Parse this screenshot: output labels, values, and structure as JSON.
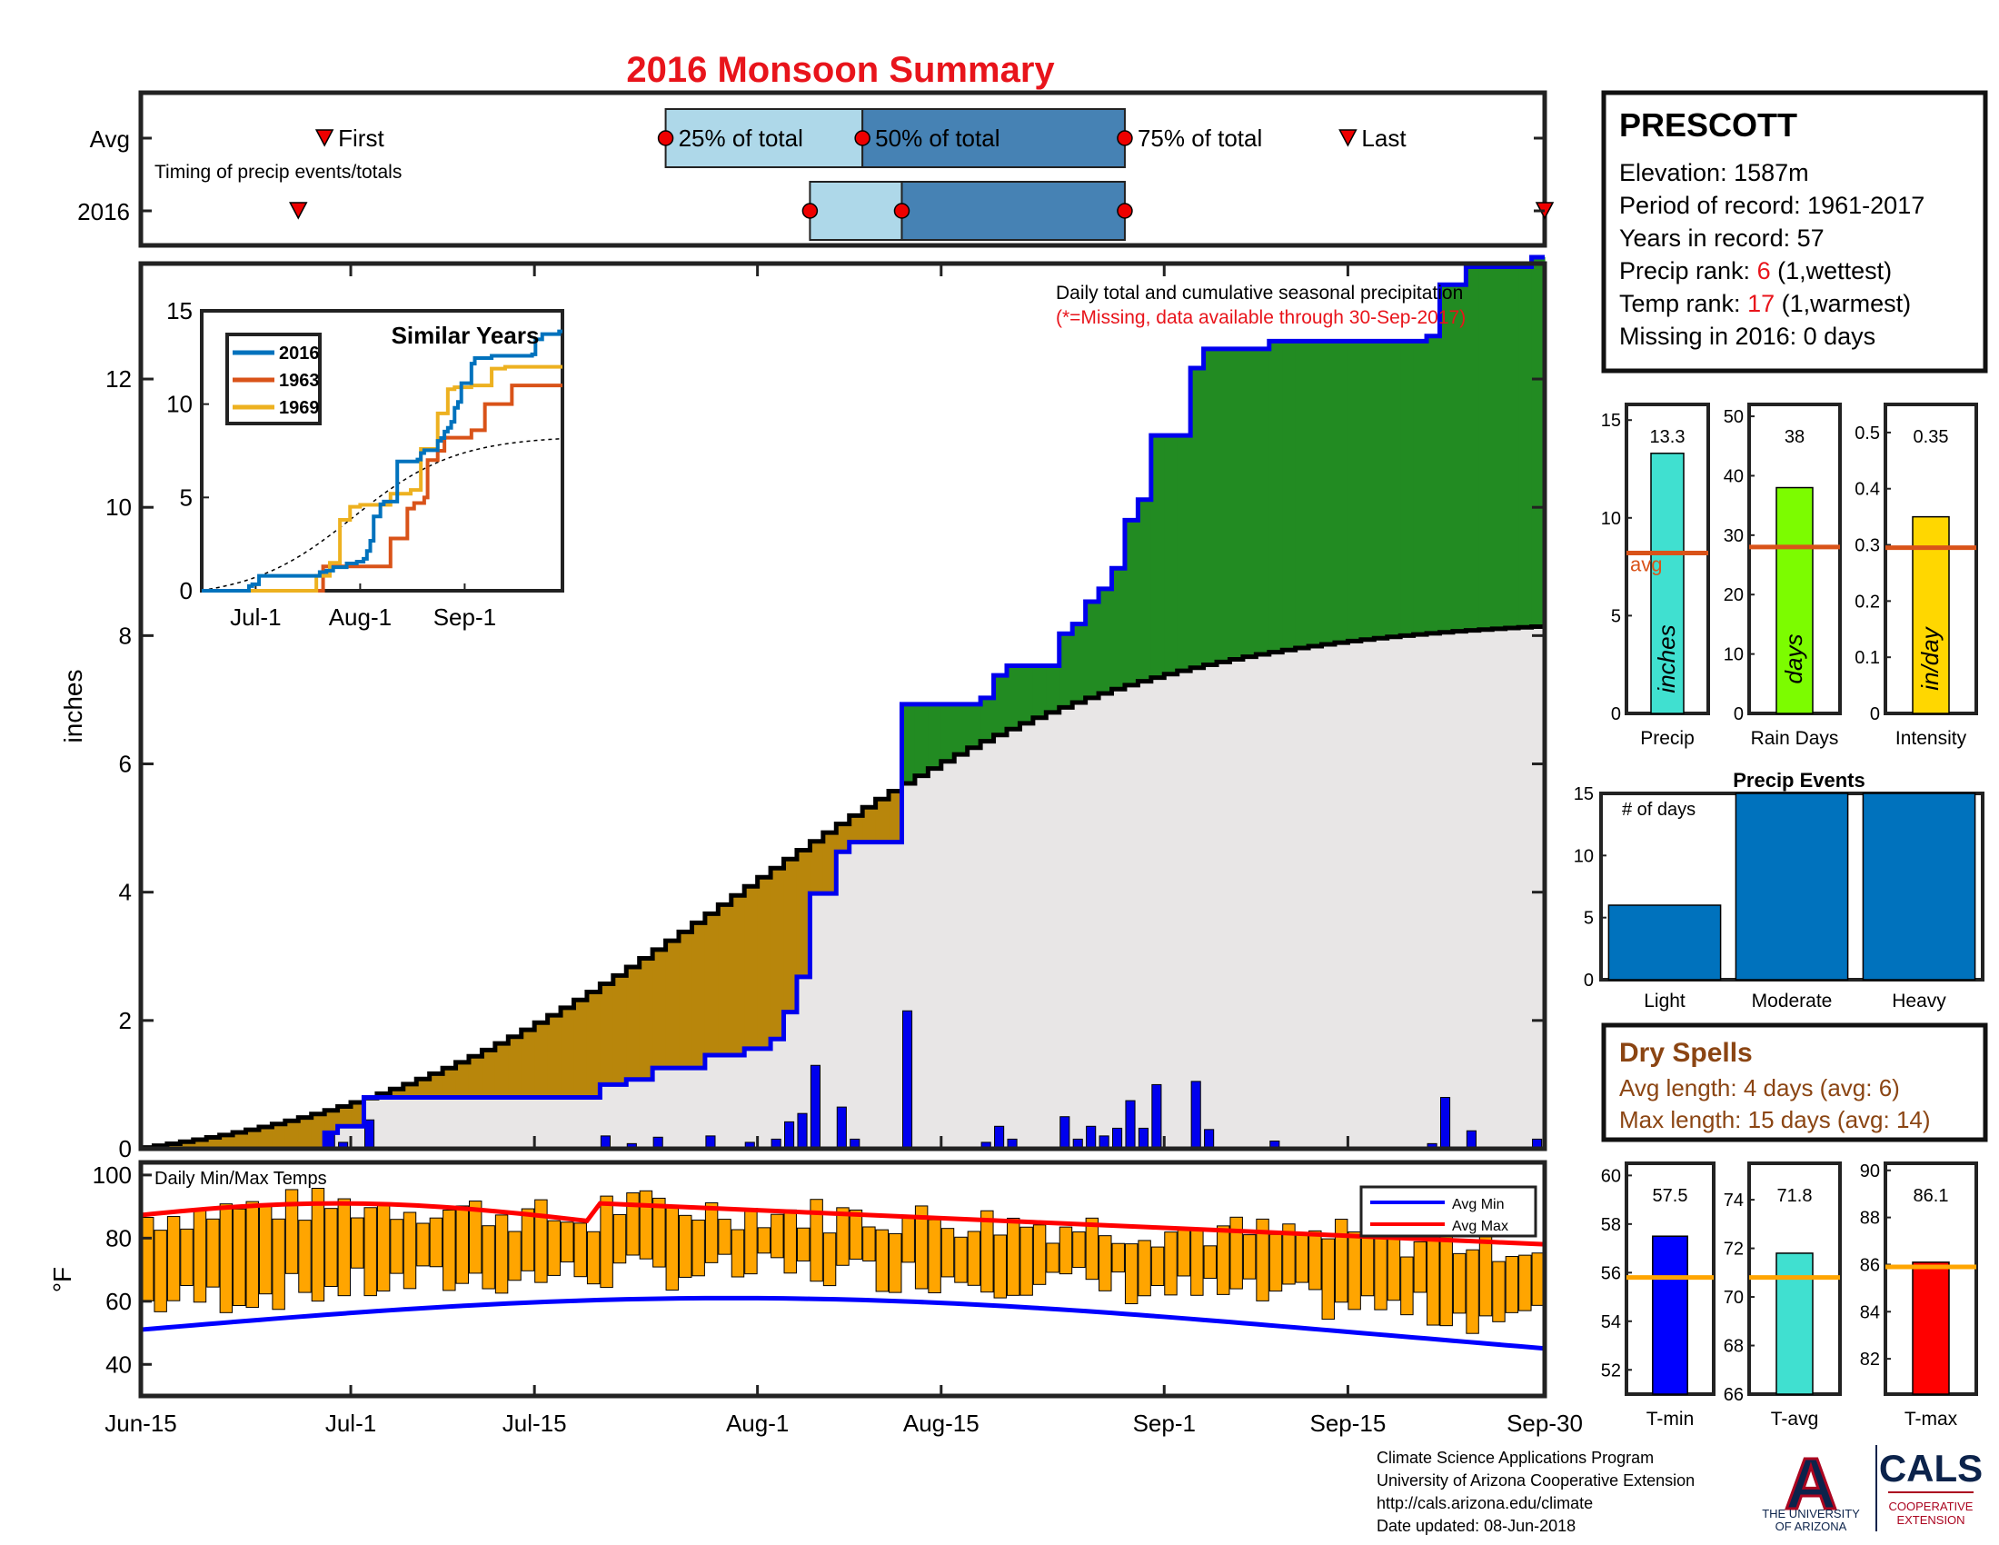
{
  "title": "2016 Monsoon Summary",
  "colors": {
    "title": "#e8141b",
    "green": "#228b22",
    "brown": "#b8860b",
    "gray_fill": "#e8e6e6",
    "blue_line": "#0000ee",
    "lightblue": "#aed8e9",
    "steelblue": "#4682b4",
    "orange": "#ffa500",
    "avg_line": "#d95319",
    "cyan": "#40e0d0",
    "lime": "#7cfc00",
    "gold": "#ffd700",
    "event_blue": "#0072bd",
    "tmin": "#0000ff",
    "tmax": "#ff0000",
    "temp_avg_line": "#ffa500",
    "dry_text": "#8b4513",
    "ua_red": "#ab0520",
    "ua_navy": "#0c234b"
  },
  "timing": {
    "row_avg": "Avg",
    "row_2016": "2016",
    "subtitle": "Timing of precip events/totals",
    "first_label": "First",
    "last_label": "Last",
    "p25_label": "25% of total",
    "p50_label": "50% of total",
    "p75_label": "75% of total",
    "avg": {
      "first": 14,
      "p25": 40,
      "p50": 55,
      "p75": 75,
      "last": 92
    },
    "y2016": {
      "first": 12,
      "p25": 51,
      "p50": 58,
      "p75": 75,
      "last": 107
    }
  },
  "station": {
    "name": "PRESCOTT",
    "elevation": "Elevation: 1587m",
    "period": "Period of record: 1961-2017",
    "years": "Years in record: 57",
    "precip_rank_label": "Precip rank: ",
    "precip_rank_value": "6",
    "precip_rank_note": " (1,wettest)",
    "temp_rank_label": "Temp rank: ",
    "temp_rank_value": "17",
    "temp_rank_note": " (1,warmest)",
    "missing": "Missing in 2016: 0 days"
  },
  "main_chart": {
    "ylabel": "inches",
    "note1": "Daily total and cumulative seasonal precipitation",
    "note2": "(*=Missing, data available through 30-Sep-2017)",
    "x_ticks": [
      {
        "day": 0,
        "label": "Jun-15"
      },
      {
        "day": 16,
        "label": "Jul-1"
      },
      {
        "day": 30,
        "label": "Jul-15"
      },
      {
        "day": 47,
        "label": "Aug-1"
      },
      {
        "day": 61,
        "label": "Aug-15"
      },
      {
        "day": 78,
        "label": "Sep-1"
      },
      {
        "day": 92,
        "label": "Sep-15"
      },
      {
        "day": 107,
        "label": "Sep-30"
      }
    ],
    "y_ticks": [
      0,
      2,
      4,
      6,
      8,
      10,
      12
    ],
    "ylim": [
      0,
      13.8
    ],
    "avg_start": 0.02,
    "avg_end": 8.15,
    "daily_precip": [
      {
        "day": 14,
        "value": 0.25
      },
      {
        "day": 15,
        "value": 0.1
      },
      {
        "day": 17,
        "value": 0.45
      },
      {
        "day": 35,
        "value": 0.2
      },
      {
        "day": 37,
        "value": 0.08
      },
      {
        "day": 39,
        "value": 0.18
      },
      {
        "day": 43,
        "value": 0.2
      },
      {
        "day": 46,
        "value": 0.1
      },
      {
        "day": 48,
        "value": 0.15
      },
      {
        "day": 49,
        "value": 0.42
      },
      {
        "day": 50,
        "value": 0.55
      },
      {
        "day": 51,
        "value": 1.3
      },
      {
        "day": 53,
        "value": 0.65
      },
      {
        "day": 54,
        "value": 0.15
      },
      {
        "day": 58,
        "value": 2.15
      },
      {
        "day": 64,
        "value": 0.1
      },
      {
        "day": 65,
        "value": 0.35
      },
      {
        "day": 66,
        "value": 0.15
      },
      {
        "day": 70,
        "value": 0.5
      },
      {
        "day": 71,
        "value": 0.15
      },
      {
        "day": 72,
        "value": 0.35
      },
      {
        "day": 73,
        "value": 0.2
      },
      {
        "day": 74,
        "value": 0.32
      },
      {
        "day": 75,
        "value": 0.75
      },
      {
        "day": 76,
        "value": 0.32
      },
      {
        "day": 77,
        "value": 1.0
      },
      {
        "day": 80,
        "value": 1.05
      },
      {
        "day": 81,
        "value": 0.3
      },
      {
        "day": 86,
        "value": 0.12
      },
      {
        "day": 98,
        "value": 0.08
      },
      {
        "day": 99,
        "value": 0.8
      },
      {
        "day": 101,
        "value": 0.28
      },
      {
        "day": 106,
        "value": 0.15
      }
    ]
  },
  "inset": {
    "title": "Similar Years",
    "y_ticks": [
      0,
      5,
      10,
      15
    ],
    "x_ticks": [
      {
        "day": 16,
        "label": "Jul-1"
      },
      {
        "day": 47,
        "label": "Aug-1"
      },
      {
        "day": 78,
        "label": "Sep-1"
      }
    ],
    "series": [
      {
        "name": "2016",
        "color": "#0072bd"
      },
      {
        "name": "1963",
        "color": "#d95319"
      },
      {
        "name": "1969",
        "color": "#edb120"
      }
    ],
    "s1963": [
      [
        0,
        0
      ],
      [
        35,
        0
      ],
      [
        36,
        1.3
      ],
      [
        55,
        1.3
      ],
      [
        56,
        2.8
      ],
      [
        60,
        2.8
      ],
      [
        61,
        4.4
      ],
      [
        63,
        4.7
      ],
      [
        66,
        5.0
      ],
      [
        67,
        7.0
      ],
      [
        70,
        7.5
      ],
      [
        72,
        8.2
      ],
      [
        80,
        8.6
      ],
      [
        84,
        10.0
      ],
      [
        90,
        10.0
      ],
      [
        92,
        11.0
      ],
      [
        107,
        11.0
      ]
    ],
    "s1969": [
      [
        0,
        0
      ],
      [
        33,
        0
      ],
      [
        34,
        0.8
      ],
      [
        38,
        1.5
      ],
      [
        41,
        3.8
      ],
      [
        44,
        4.5
      ],
      [
        47,
        4.6
      ],
      [
        56,
        5.2
      ],
      [
        62,
        5.4
      ],
      [
        65,
        7.6
      ],
      [
        70,
        9.5
      ],
      [
        73,
        10.8
      ],
      [
        75,
        10.9
      ],
      [
        80,
        11.0
      ],
      [
        86,
        11.9
      ],
      [
        90,
        12.0
      ],
      [
        107,
        12.0
      ]
    ]
  },
  "season_stats": {
    "precip": {
      "label": "Precip",
      "unit": "inches",
      "value": 13.3,
      "value_label": "13.3",
      "avg": 8.2,
      "avg_label": "avg",
      "ylim": [
        0,
        15.8
      ],
      "ticks": [
        0,
        5,
        10,
        15
      ],
      "color": "#40e0d0"
    },
    "rain_days": {
      "label": "Rain Days",
      "unit": "days",
      "value": 38,
      "value_label": "38",
      "avg": 28,
      "ylim": [
        0,
        52
      ],
      "ticks": [
        0,
        10,
        20,
        30,
        40,
        50
      ],
      "color": "#7cfc00"
    },
    "intensity": {
      "label": "Intensity",
      "unit": "in/day",
      "value": 0.35,
      "value_label": "0.35",
      "avg": 0.295,
      "ylim": [
        0,
        0.55
      ],
      "ticks": [
        0,
        0.1,
        0.2,
        0.3,
        0.4,
        0.5
      ],
      "color": "#ffd700"
    }
  },
  "precip_events": {
    "title": "Precip Events",
    "ylabel_inside": "# of days",
    "categories": [
      "Light",
      "Moderate",
      "Heavy"
    ],
    "values": [
      6,
      15,
      15
    ],
    "ylim": [
      0,
      15
    ],
    "ticks": [
      0,
      5,
      10,
      15
    ]
  },
  "dry_spells": {
    "title": "Dry Spells",
    "avg_length": "Avg length: 4 days (avg: 6)",
    "max_length": "Max length: 15 days (avg: 14)"
  },
  "temps_chart": {
    "ylabel": "°F",
    "label": "Daily Min/Max Temps",
    "legend_min": "Avg Min",
    "legend_max": "Avg Max",
    "y_ticks": [
      40,
      60,
      80,
      100
    ],
    "ylim": [
      30,
      104
    ]
  },
  "temp_stats": {
    "tmin": {
      "label": "T-min",
      "value": 57.5,
      "value_label": "57.5",
      "avg": 55.8,
      "ylim": [
        51,
        60.5
      ],
      "ticks": [
        52,
        54,
        56,
        58,
        60
      ],
      "color": "#0000ff"
    },
    "tavg": {
      "label": "T-avg",
      "value": 71.8,
      "value_label": "71.8",
      "avg": 70.8,
      "ylim": [
        66,
        75.5
      ],
      "ticks": [
        66,
        68,
        70,
        72,
        74
      ],
      "color": "#40e0d0"
    },
    "tmax": {
      "label": "T-max",
      "value": 86.1,
      "value_label": "86.1",
      "avg": 85.9,
      "ylim": [
        80.5,
        90.3
      ],
      "ticks": [
        82,
        84,
        86,
        88,
        90
      ],
      "color": "#ff0000"
    }
  },
  "footer": {
    "line1": "Climate Science Applications Program",
    "line2": "University of Arizona Cooperative Extension",
    "line3": "http://cals.arizona.edu/climate",
    "line4": " Date updated: 08-Jun-2018",
    "ua_letter": "A",
    "ua_line1": "THE UNIVERSITY",
    "ua_line2": "OF ARIZONA",
    "cals": "CALS",
    "coop1": "COOPERATIVE",
    "coop2": "EXTENSION"
  }
}
